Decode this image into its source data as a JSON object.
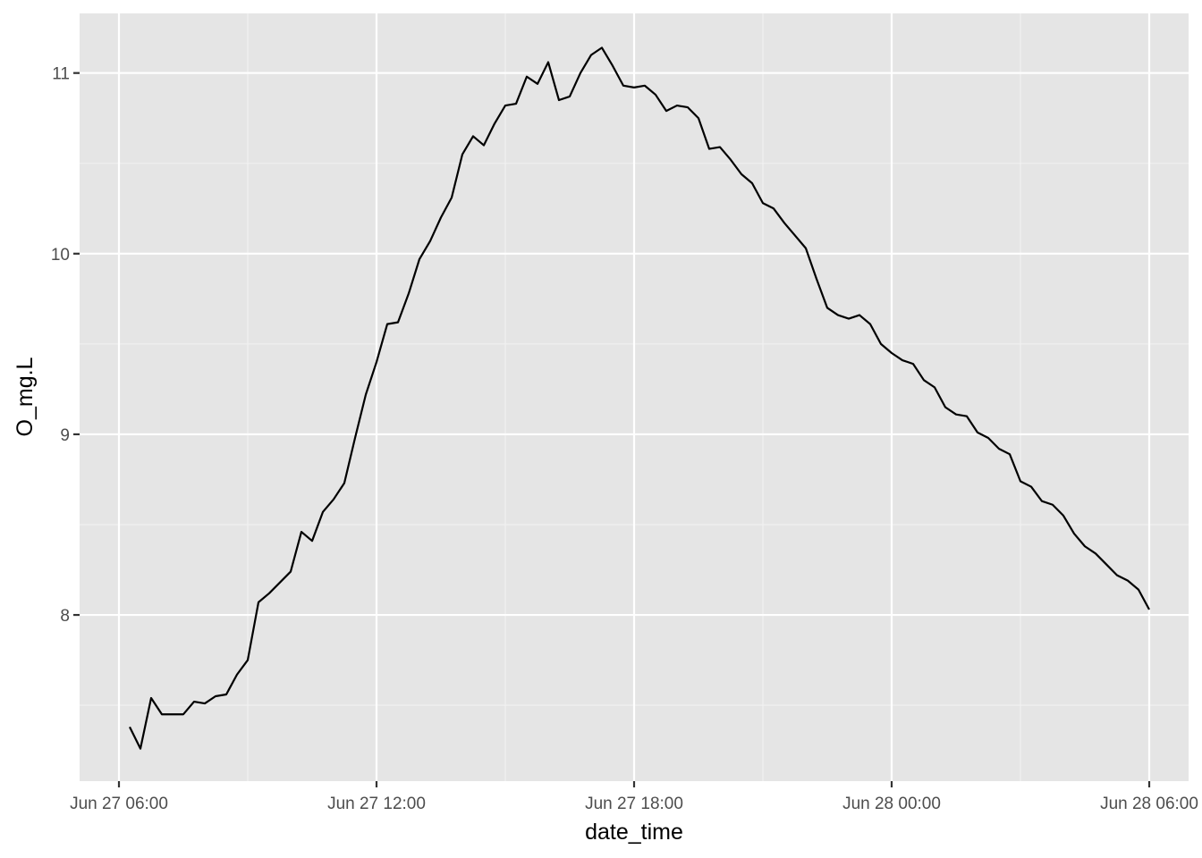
{
  "chart_data": {
    "type": "line",
    "xlabel": "date_time",
    "ylabel": "O_mg.L",
    "x_tick_labels": [
      "Jun 27 06:00",
      "Jun 27 12:00",
      "Jun 27 18:00",
      "Jun 28 00:00",
      "Jun 28 06:00"
    ],
    "x_tick_values": [
      "2024-06-27T06:00",
      "2024-06-27T12:00",
      "2024-06-27T18:00",
      "2024-06-28T00:00",
      "2024-06-28T06:00"
    ],
    "x_range": [
      "2024-06-27T05:05",
      "2024-06-28T06:55"
    ],
    "y_ticks": [
      8,
      9,
      10,
      11
    ],
    "y_tick_labels": [
      "8",
      "9",
      "10",
      "11"
    ],
    "y_range": [
      7.08,
      11.33
    ],
    "grid": true,
    "series": [
      {
        "color": "#000000",
        "x": [
          "2024-06-27T06:15",
          "2024-06-27T06:30",
          "2024-06-27T06:45",
          "2024-06-27T07:00",
          "2024-06-27T07:15",
          "2024-06-27T07:30",
          "2024-06-27T07:45",
          "2024-06-27T08:00",
          "2024-06-27T08:15",
          "2024-06-27T08:30",
          "2024-06-27T08:45",
          "2024-06-27T09:00",
          "2024-06-27T09:15",
          "2024-06-27T09:30",
          "2024-06-27T09:45",
          "2024-06-27T10:00",
          "2024-06-27T10:15",
          "2024-06-27T10:30",
          "2024-06-27T10:45",
          "2024-06-27T11:00",
          "2024-06-27T11:15",
          "2024-06-27T11:30",
          "2024-06-27T11:45",
          "2024-06-27T12:00",
          "2024-06-27T12:15",
          "2024-06-27T12:30",
          "2024-06-27T12:45",
          "2024-06-27T13:00",
          "2024-06-27T13:15",
          "2024-06-27T13:30",
          "2024-06-27T13:45",
          "2024-06-27T14:00",
          "2024-06-27T14:15",
          "2024-06-27T14:30",
          "2024-06-27T14:45",
          "2024-06-27T15:00",
          "2024-06-27T15:15",
          "2024-06-27T15:30",
          "2024-06-27T15:45",
          "2024-06-27T16:00",
          "2024-06-27T16:15",
          "2024-06-27T16:30",
          "2024-06-27T16:45",
          "2024-06-27T17:00",
          "2024-06-27T17:15",
          "2024-06-27T17:30",
          "2024-06-27T17:45",
          "2024-06-27T18:00",
          "2024-06-27T18:15",
          "2024-06-27T18:30",
          "2024-06-27T18:45",
          "2024-06-27T19:00",
          "2024-06-27T19:15",
          "2024-06-27T19:30",
          "2024-06-27T19:45",
          "2024-06-27T20:00",
          "2024-06-27T20:15",
          "2024-06-27T20:30",
          "2024-06-27T20:45",
          "2024-06-27T21:00",
          "2024-06-27T21:15",
          "2024-06-27T21:30",
          "2024-06-27T21:45",
          "2024-06-27T22:00",
          "2024-06-27T22:15",
          "2024-06-27T22:30",
          "2024-06-27T22:45",
          "2024-06-27T23:00",
          "2024-06-27T23:15",
          "2024-06-27T23:30",
          "2024-06-27T23:45",
          "2024-06-28T00:00",
          "2024-06-28T00:15",
          "2024-06-28T00:30",
          "2024-06-28T00:45",
          "2024-06-28T01:00",
          "2024-06-28T01:15",
          "2024-06-28T01:30",
          "2024-06-28T01:45",
          "2024-06-28T02:00",
          "2024-06-28T02:15",
          "2024-06-28T02:30",
          "2024-06-28T02:45",
          "2024-06-28T03:00",
          "2024-06-28T03:15",
          "2024-06-28T03:30",
          "2024-06-28T03:45",
          "2024-06-28T04:00",
          "2024-06-28T04:15",
          "2024-06-28T04:30",
          "2024-06-28T04:45",
          "2024-06-28T05:00",
          "2024-06-28T05:15",
          "2024-06-28T05:30",
          "2024-06-28T05:45",
          "2024-06-28T06:00"
        ],
        "y": [
          7.38,
          7.26,
          7.54,
          7.45,
          7.45,
          7.45,
          7.52,
          7.51,
          7.55,
          7.56,
          7.67,
          7.75,
          8.07,
          8.12,
          8.18,
          8.24,
          8.46,
          8.41,
          8.57,
          8.64,
          8.73,
          8.98,
          9.22,
          9.4,
          9.61,
          9.62,
          9.78,
          9.97,
          10.07,
          10.2,
          10.31,
          10.55,
          10.65,
          10.6,
          10.72,
          10.82,
          10.83,
          10.98,
          10.94,
          11.06,
          10.85,
          10.87,
          11.0,
          11.1,
          11.14,
          11.04,
          10.93,
          10.92,
          10.93,
          10.88,
          10.79,
          10.82,
          10.81,
          10.75,
          10.58,
          10.59,
          10.52,
          10.44,
          10.39,
          10.28,
          10.25,
          10.17,
          10.1,
          10.03,
          9.86,
          9.7,
          9.66,
          9.64,
          9.66,
          9.61,
          9.5,
          9.45,
          9.41,
          9.39,
          9.3,
          9.26,
          9.15,
          9.11,
          9.1,
          9.01,
          8.98,
          8.92,
          8.89,
          8.74,
          8.71,
          8.63,
          8.61,
          8.55,
          8.45,
          8.38,
          8.34,
          8.28,
          8.22,
          8.19,
          8.14,
          8.03
        ]
      }
    ]
  }
}
